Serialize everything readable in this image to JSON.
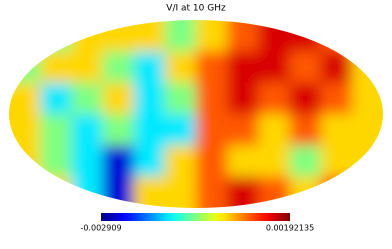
{
  "chart_data": {
    "type": "mollweide-map",
    "title": "V/I at 10 GHz",
    "colormap": "jet",
    "clim": [
      -0.002909,
      0.00192135
    ],
    "values": [
      [
        -0.0005,
        -0.0005,
        0.0003,
        0.0003,
        0.0003,
        -0.0005,
        0.0003,
        0.0009,
        0.0015,
        0.0015,
        0.0009,
        0.0003
      ],
      [
        -0.0005,
        0.0003,
        0.0003,
        -0.0005,
        -0.0012,
        0.0003,
        0.0009,
        0.0015,
        0.0015,
        0.0009,
        0.0015,
        0.0003
      ],
      [
        0.0003,
        -0.0012,
        -0.0005,
        0.0003,
        -0.0012,
        -0.0005,
        0.0009,
        0.0015,
        0.0009,
        0.0015,
        0.0009,
        0.0003
      ],
      [
        0.0003,
        -0.0005,
        -0.0012,
        -0.0005,
        -0.0012,
        -0.0012,
        0.0009,
        0.0009,
        0.0003,
        0.0009,
        0.0003,
        0.0003
      ],
      [
        0.0003,
        -0.0005,
        -0.0012,
        -0.0025,
        -0.0012,
        0.0003,
        0.0009,
        0.0003,
        0.0003,
        -0.0005,
        0.0003,
        0.0003
      ],
      [
        0.0003,
        0.0003,
        -0.0012,
        -0.0025,
        0.0003,
        0.0003,
        0.0009,
        0.0015,
        0.0009,
        0.0003,
        0.0009,
        0.0003
      ]
    ]
  }
}
